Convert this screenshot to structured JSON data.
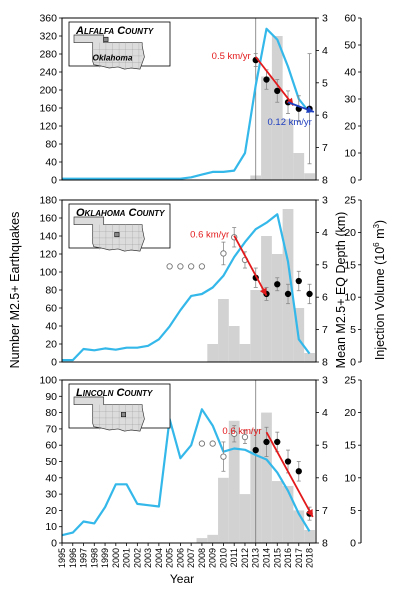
{
  "figure": {
    "x_axis_label": "Year",
    "left_axis_label": "Number M2.5+ Earthquakes",
    "depth_axis_label": "Mean M2.5+ EQ Depth (km)",
    "injection_axis_label_prefix": "Injection Volume (10",
    "injection_axis_label_exp": "6",
    "injection_axis_label_suffix": " m",
    "injection_axis_label_exp2": "3",
    "injection_axis_label_end": ")",
    "years": [
      1995,
      1996,
      1997,
      1998,
      1999,
      2000,
      2001,
      2002,
      2003,
      2004,
      2005,
      2006,
      2007,
      2008,
      2009,
      2010,
      2011,
      2012,
      2013,
      2014,
      2015,
      2016,
      2017,
      2018
    ],
    "colors": {
      "injection": "#34b8ea",
      "earthquake_bars": "#d2d2d2",
      "trend_red": "#e31a1c",
      "trend_blue": "#1f3fbf",
      "errorbar": "#888888"
    }
  },
  "chart_data": [
    {
      "type": "bar",
      "panel_label": "Alfalfa County",
      "map_label": "Oklahoma",
      "left_axis": {
        "ylim": [
          0,
          360
        ],
        "ticks": [
          0,
          40,
          80,
          120,
          160,
          200,
          240,
          280,
          320,
          360
        ]
      },
      "depth_axis": {
        "ylim": [
          3,
          8
        ],
        "ticks": [
          3,
          4,
          5,
          6,
          7,
          8
        ],
        "inverted": true
      },
      "injection_axis": {
        "ylim": [
          0,
          60
        ],
        "ticks": [
          0,
          10,
          20,
          30,
          40,
          50,
          60
        ]
      },
      "earthquakes": {
        "x": [
          2013,
          2014,
          2015,
          2016,
          2017,
          2018
        ],
        "values": [
          10,
          230,
          320,
          135,
          60,
          15
        ]
      },
      "injection": {
        "x": [
          1995,
          1996,
          1997,
          1998,
          1999,
          2000,
          2001,
          2002,
          2003,
          2004,
          2005,
          2006,
          2007,
          2008,
          2009,
          2010,
          2011,
          2012,
          2013,
          2014,
          2015,
          2016,
          2017,
          2018
        ],
        "values": [
          0.5,
          0.5,
          0.5,
          0.5,
          0.5,
          0.5,
          0.5,
          0.5,
          0.5,
          0.5,
          0.5,
          0.5,
          1,
          2,
          3,
          3,
          3.5,
          10,
          35,
          56,
          52,
          42,
          30,
          25
        ]
      },
      "depth_points": [
        {
          "x": 2013,
          "y": 4.3,
          "err": 0.2,
          "filled": true
        },
        {
          "x": 2014,
          "y": 4.9,
          "err": 0.3,
          "filled": true
        },
        {
          "x": 2015,
          "y": 5.25,
          "err": 0.35,
          "filled": true
        },
        {
          "x": 2016,
          "y": 5.6,
          "err": 0.35,
          "filled": true
        },
        {
          "x": 2017,
          "y": 5.8,
          "err": 0.4,
          "filled": true
        },
        {
          "x": 2018,
          "y": 5.8,
          "err": 1.7,
          "filled": true
        }
      ],
      "trends": [
        {
          "label": "0.5 km/yr",
          "color": "red",
          "x": [
            2013,
            2016.5
          ],
          "y": [
            4.2,
            5.7
          ]
        },
        {
          "label": "0.12 km/yr",
          "color": "blue",
          "x": [
            2016,
            2018.4
          ],
          "y": [
            5.6,
            5.9
          ]
        }
      ],
      "vline_x": 2013
    },
    {
      "type": "bar",
      "panel_label": "Oklahoma County",
      "left_axis": {
        "ylim": [
          0,
          180
        ],
        "ticks": [
          0,
          20,
          40,
          60,
          80,
          100,
          120,
          140,
          160,
          180
        ]
      },
      "depth_axis": {
        "ylim": [
          3,
          8
        ],
        "ticks": [
          3,
          4,
          5,
          6,
          7,
          8
        ],
        "inverted": true
      },
      "injection_axis": {
        "ylim": [
          0,
          25
        ],
        "ticks": [
          0,
          5,
          10,
          15,
          20,
          25
        ]
      },
      "earthquakes": {
        "x": [
          2009,
          2010,
          2011,
          2012,
          2013,
          2014,
          2015,
          2016,
          2017,
          2018
        ],
        "values": [
          20,
          70,
          40,
          20,
          80,
          140,
          120,
          170,
          60,
          10
        ]
      },
      "injection": {
        "x": [
          1995,
          1996,
          1997,
          1998,
          1999,
          2000,
          2001,
          2002,
          2003,
          2004,
          2005,
          2006,
          2007,
          2008,
          2009,
          2010,
          2011,
          2012,
          2013,
          2014,
          2015,
          2016,
          2017,
          2018
        ],
        "values": [
          0.3,
          0.3,
          2.0,
          1.8,
          2.1,
          1.9,
          2.2,
          2.2,
          2.5,
          3.5,
          5.5,
          8.0,
          10.2,
          10.5,
          11.5,
          13.3,
          16.2,
          18.5,
          20.5,
          21.5,
          22.8,
          15.5,
          3.5,
          1.3
        ]
      },
      "depth_points": [
        {
          "x": 2005,
          "y": 5.05,
          "filled": false
        },
        {
          "x": 2006,
          "y": 5.05,
          "filled": false
        },
        {
          "x": 2007,
          "y": 5.05,
          "filled": false
        },
        {
          "x": 2008,
          "y": 5.05,
          "filled": false
        },
        {
          "x": 2010,
          "y": 4.65,
          "err": 0.35,
          "filled": false
        },
        {
          "x": 2011,
          "y": 4.15,
          "err": 0.3,
          "filled": false
        },
        {
          "x": 2012,
          "y": 4.85,
          "err": 0.25,
          "filled": false
        },
        {
          "x": 2013,
          "y": 5.4,
          "err": 0.3,
          "filled": true
        },
        {
          "x": 2014,
          "y": 5.9,
          "err": 0.2,
          "filled": true
        },
        {
          "x": 2015,
          "y": 5.6,
          "err": 0.2,
          "filled": true
        },
        {
          "x": 2016,
          "y": 5.9,
          "err": 0.3,
          "filled": true
        },
        {
          "x": 2017,
          "y": 5.5,
          "err": 0.3,
          "filled": true
        },
        {
          "x": 2018,
          "y": 5.9,
          "err": 0.3,
          "filled": true
        }
      ],
      "trends": [
        {
          "label": "0.6 km/yr",
          "color": "red",
          "x": [
            2011,
            2014
          ],
          "y": [
            4.1,
            5.95
          ]
        }
      ]
    },
    {
      "type": "bar",
      "panel_label": "Lincoln County",
      "left_axis": {
        "ylim": [
          0,
          100
        ],
        "ticks": [
          0,
          10,
          20,
          30,
          40,
          50,
          60,
          70,
          80,
          90,
          100
        ]
      },
      "depth_axis": {
        "ylim": [
          3,
          8
        ],
        "ticks": [
          3,
          4,
          5,
          6,
          7,
          8
        ],
        "inverted": true
      },
      "injection_axis": {
        "ylim": [
          0,
          25
        ],
        "ticks": [
          0,
          5,
          10,
          15,
          20,
          25
        ]
      },
      "earthquakes": {
        "x": [
          2008,
          2009,
          2010,
          2011,
          2012,
          2013,
          2014,
          2015,
          2016,
          2017,
          2018
        ],
        "values": [
          3,
          5,
          40,
          75,
          30,
          70,
          80,
          38,
          35,
          20,
          8
        ]
      },
      "injection": {
        "x": [
          1995,
          1996,
          1997,
          1998,
          1999,
          2000,
          2001,
          2002,
          2003,
          2004,
          2005,
          2006,
          2007,
          2008,
          2009,
          2010,
          2011,
          2012,
          2013,
          2014,
          2015,
          2016,
          2017,
          2018
        ],
        "values": [
          1.2,
          1.6,
          3.3,
          3.0,
          5.5,
          9.0,
          9.0,
          6.0,
          5.8,
          5.6,
          19.0,
          13.0,
          15.0,
          20.5,
          18.0,
          14.0,
          14.5,
          14.3,
          13.5,
          12.8,
          10.8,
          8.0,
          4.5,
          1.8
        ]
      },
      "depth_points": [
        {
          "x": 2008,
          "y": 4.95,
          "filled": false
        },
        {
          "x": 2009,
          "y": 4.95,
          "filled": false
        },
        {
          "x": 2010,
          "y": 5.35,
          "err": 0.45,
          "filled": false
        },
        {
          "x": 2011,
          "y": 4.65,
          "err": 0.25,
          "filled": false
        },
        {
          "x": 2012,
          "y": 4.75,
          "err": 0.2,
          "filled": false
        },
        {
          "x": 2013,
          "y": 5.15,
          "filled": true
        },
        {
          "x": 2014,
          "y": 4.9,
          "err": 0.45,
          "filled": true
        },
        {
          "x": 2015,
          "y": 4.9,
          "err": 0.3,
          "filled": true
        },
        {
          "x": 2016,
          "y": 5.5,
          "err": 0.35,
          "filled": true
        },
        {
          "x": 2017,
          "y": 5.8,
          "err": 0.3,
          "filled": true
        },
        {
          "x": 2018,
          "y": 7.1,
          "err": 0.2,
          "filled": true
        }
      ],
      "trends": [
        {
          "label": "0.6 km/yr",
          "color": "red",
          "x": [
            2014,
            2018.3
          ],
          "y": [
            4.6,
            7.2
          ]
        }
      ],
      "vline_x": 2013
    }
  ]
}
